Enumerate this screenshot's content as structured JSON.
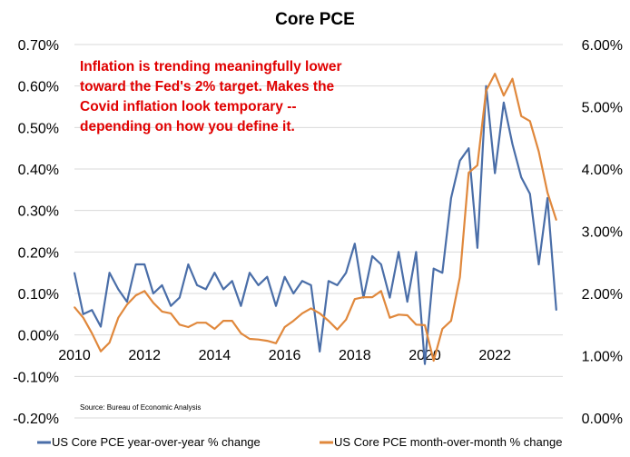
{
  "chart_data": {
    "type": "line",
    "title": "Core PCE",
    "annotation": [
      "Inflation is trending meaningfully lower",
      "toward the Fed's 2% target. Makes the",
      "Covid inflation look temporary --",
      "depending on how you define it."
    ],
    "source": "Source: Bureau of Economic Analysis",
    "x_ticks": [
      "2010",
      "2012",
      "2014",
      "2016",
      "2018",
      "2020",
      "2022"
    ],
    "x_tick_values": [
      2010,
      2012,
      2014,
      2016,
      2018,
      2020,
      2022
    ],
    "xlim": [
      2010,
      2024
    ],
    "y_left": {
      "ylim": [
        -0.2,
        0.7
      ],
      "ticks": [
        "-0.20%",
        "-0.10%",
        "0.00%",
        "0.10%",
        "0.20%",
        "0.30%",
        "0.40%",
        "0.50%",
        "0.60%",
        "0.70%"
      ],
      "tick_values": [
        -0.2,
        -0.1,
        0,
        0.1,
        0.2,
        0.3,
        0.4,
        0.5,
        0.6,
        0.7
      ]
    },
    "y_right": {
      "ylim": [
        0,
        6
      ],
      "ticks": [
        "0.00%",
        "1.00%",
        "2.00%",
        "3.00%",
        "4.00%",
        "5.00%",
        "6.00%"
      ],
      "tick_values": [
        0,
        1,
        2,
        3,
        4,
        5,
        6
      ]
    },
    "grid": true,
    "legend_position": "bottom",
    "x_start": 2010,
    "x_step": 0.25,
    "series": [
      {
        "name": "US Core PCE year-over-year % change",
        "axis": "left",
        "color": "#4a6ea8",
        "values": [
          0.15,
          0.05,
          0.06,
          0.02,
          0.15,
          0.11,
          0.08,
          0.17,
          0.17,
          0.1,
          0.12,
          0.07,
          0.09,
          0.17,
          0.12,
          0.11,
          0.15,
          0.11,
          0.13,
          0.07,
          0.15,
          0.12,
          0.14,
          0.07,
          0.14,
          0.1,
          0.13,
          0.12,
          -0.04,
          0.13,
          0.12,
          0.15,
          0.22,
          0.09,
          0.19,
          0.17,
          0.09,
          0.2,
          0.08,
          0.2,
          -0.07,
          0.16,
          0.15,
          0.33,
          0.42,
          0.45,
          0.21,
          0.6,
          0.39,
          0.56,
          0.46,
          0.38,
          0.34,
          0.17,
          0.33,
          0.06
        ]
      },
      {
        "name": "US Core PCE month-over-month % change",
        "axis": "right",
        "color": "#e0883c",
        "values": [
          1.78,
          1.61,
          1.36,
          1.07,
          1.21,
          1.61,
          1.82,
          1.97,
          2.04,
          1.85,
          1.71,
          1.68,
          1.5,
          1.46,
          1.53,
          1.53,
          1.43,
          1.56,
          1.56,
          1.36,
          1.27,
          1.26,
          1.24,
          1.2,
          1.46,
          1.56,
          1.68,
          1.76,
          1.68,
          1.56,
          1.42,
          1.58,
          1.91,
          1.94,
          1.94,
          2.04,
          1.61,
          1.66,
          1.65,
          1.5,
          1.49,
          0.92,
          1.43,
          1.56,
          2.26,
          3.94,
          4.06,
          5.26,
          5.53,
          5.18,
          5.45,
          4.85,
          4.77,
          4.28,
          3.62,
          3.18
        ]
      }
    ]
  }
}
